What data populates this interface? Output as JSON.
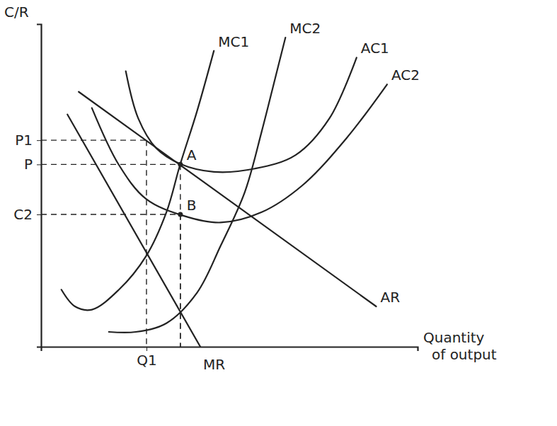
{
  "chart_data": {
    "type": "line",
    "x_label": "Quantity of output",
    "y_label": "C/R",
    "xlim": [
      0,
      100
    ],
    "ylim": [
      0,
      100
    ],
    "xticks": [
      {
        "value": 28,
        "label": "Q1"
      }
    ],
    "yticks": [
      {
        "value": 64,
        "label": "P1"
      },
      {
        "value": 56.5,
        "label": "P"
      },
      {
        "value": 41,
        "label": "C2"
      }
    ],
    "grid": false,
    "color": "#222222",
    "series": [
      {
        "name": "MC1",
        "x": [
          5.4,
          9.0,
          13.5,
          20.7,
          27.9,
          33.3,
          36.9,
          41.4,
          45.9
        ],
        "values": [
          17.7,
          12.5,
          11.5,
          17.7,
          28.1,
          41.7,
          56.3,
          72.9,
          91.7
        ]
      },
      {
        "name": "MC2",
        "x": [
          18.0,
          25.2,
          33.3,
          41.4,
          47.7,
          54.1,
          58.6,
          62.2,
          64.9
        ],
        "values": [
          4.6,
          4.6,
          7.3,
          16.7,
          31.3,
          47.9,
          66.7,
          83.3,
          95.8
        ]
      },
      {
        "name": "AC1",
        "x": [
          22.5,
          25.8,
          30.6,
          36.9,
          45.9,
          56.8,
          67.6,
          76.6,
          83.8
        ],
        "values": [
          85.4,
          70.8,
          61.5,
          56.7,
          54.2,
          55.2,
          59.4,
          70.8,
          89.6
        ]
      },
      {
        "name": "AC2",
        "x": [
          13.5,
          20.7,
          27.9,
          37.8,
          47.7,
          58.6,
          69.4,
          81.1,
          91.9
        ],
        "values": [
          74.0,
          56.3,
          45.8,
          40.6,
          38.5,
          41.7,
          50.0,
          64.6,
          81.3
        ]
      },
      {
        "name": "AR",
        "x": [
          10,
          89
        ],
        "values": [
          79,
          12.5
        ]
      },
      {
        "name": "MR",
        "x": [
          7,
          42.3
        ],
        "values": [
          72,
          0
        ]
      }
    ],
    "points": [
      {
        "label": "A",
        "x": 37,
        "y": 56.5
      },
      {
        "label": "B",
        "x": 37,
        "y": 41
      }
    ],
    "guides": [
      [
        28,
        64
      ],
      [
        37,
        56.5
      ],
      [
        37,
        41
      ]
    ]
  }
}
